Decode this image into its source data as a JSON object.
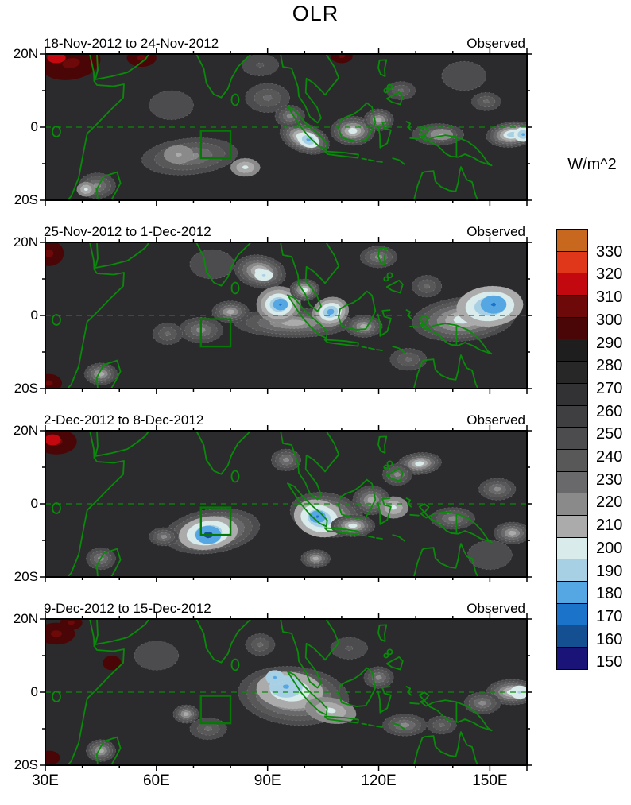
{
  "chart_data": {
    "type": "heatmap",
    "title": "OLR",
    "panels": [
      {
        "title": "18-Nov-2012 to 24-Nov-2012",
        "annotation": "Observed",
        "warm": [
          [
            37,
            17.5,
            8,
            4.5,
            300,
            -10
          ],
          [
            33,
            19,
            2.5,
            1.5,
            310,
            0,
            310
          ],
          [
            56,
            19,
            4,
            2.5,
            300,
            0
          ],
          [
            110,
            19.5,
            3,
            2,
            300,
            0
          ]
        ],
        "cool": [
          [
            69,
            -8,
            13,
            5,
            210,
            -5
          ],
          [
            66,
            -7.5,
            4,
            2.5,
            200,
            0,
            210
          ],
          [
            84,
            -11,
            4,
            2.5,
            190,
            0,
            210
          ],
          [
            90,
            8,
            6,
            4,
            220,
            0
          ],
          [
            100,
            -3,
            7,
            4,
            180,
            20
          ],
          [
            101,
            -3.5,
            3,
            2,
            170,
            20,
            190
          ],
          [
            96,
            3,
            4,
            3,
            210,
            0
          ],
          [
            113,
            -1,
            6,
            4,
            190,
            0
          ],
          [
            120,
            2,
            4,
            3,
            200,
            0
          ],
          [
            126,
            10,
            4,
            2.5,
            220,
            0
          ],
          [
            136,
            -2,
            7,
            3,
            210,
            0
          ],
          [
            137,
            -2,
            3,
            1.5,
            200,
            0,
            210
          ],
          [
            156,
            -2,
            7,
            3.5,
            180,
            -5
          ],
          [
            159,
            -2,
            2.5,
            2,
            170,
            0,
            190
          ],
          [
            149,
            7,
            4,
            2.5,
            220,
            0
          ],
          [
            44,
            -16,
            5,
            3.5,
            210,
            0
          ],
          [
            41,
            -17,
            2.5,
            2,
            190,
            0,
            210
          ],
          [
            88,
            17,
            5,
            3,
            230,
            0
          ],
          [
            64,
            6,
            6,
            4,
            240,
            0
          ],
          [
            143,
            14,
            6,
            4,
            240,
            0
          ]
        ]
      },
      {
        "title": "25-Nov-2012 to 1-Dec-2012",
        "annotation": "Observed",
        "warm": [
          [
            31,
            17,
            4,
            3.5,
            300,
            0
          ],
          [
            31,
            -18.5,
            3.5,
            2.5,
            300,
            0
          ]
        ],
        "cool": [
          [
            88,
            12,
            7,
            4.5,
            190,
            10
          ],
          [
            89,
            11,
            2.5,
            1.5,
            180,
            0,
            190
          ],
          [
            97,
            -2,
            16,
            4,
            200,
            0
          ],
          [
            93,
            3,
            6,
            5,
            170,
            0,
            210
          ],
          [
            93.5,
            3,
            2,
            1.6,
            160,
            0,
            170
          ],
          [
            100,
            7,
            4,
            3,
            190,
            0
          ],
          [
            107,
            1,
            5,
            4,
            170,
            -15,
            210
          ],
          [
            80,
            1,
            5,
            3,
            200,
            0
          ],
          [
            72,
            -4,
            6,
            3.5,
            210,
            0
          ],
          [
            63,
            -5,
            4,
            3,
            220,
            0
          ],
          [
            143,
            -1,
            14,
            6,
            190,
            -5
          ],
          [
            150,
            2.5,
            9,
            5.5,
            170,
            -5,
            200
          ],
          [
            151,
            3,
            3.5,
            2.5,
            160,
            0,
            170
          ],
          [
            120,
            16,
            5,
            3,
            210,
            0
          ],
          [
            133,
            8,
            4,
            3,
            220,
            0
          ],
          [
            45,
            -16,
            4.5,
            3,
            200,
            0
          ],
          [
            116,
            -3,
            5,
            3,
            200,
            0
          ],
          [
            128,
            -12,
            5,
            3,
            220,
            0
          ],
          [
            75,
            14,
            6,
            4,
            240,
            0
          ]
        ]
      },
      {
        "title": "2-Dec-2012 to 8-Dec-2012",
        "annotation": "Observed",
        "warm": [
          [
            33,
            17,
            5.5,
            3.5,
            300,
            0
          ],
          [
            32,
            17.5,
            2.2,
            1.5,
            310,
            0,
            310
          ]
        ],
        "cool": [
          [
            75,
            -7.5,
            13,
            6,
            190,
            -8
          ],
          [
            74,
            -8,
            8,
            4.5,
            170,
            -8,
            200
          ],
          [
            74,
            -8.5,
            3.5,
            2.5,
            160,
            0,
            170
          ],
          [
            74,
            -8.5,
            1.2,
            0.9,
            150,
            0,
            150
          ],
          [
            62,
            -9,
            4,
            2.5,
            210,
            0
          ],
          [
            106,
            -3,
            10,
            6,
            190,
            10
          ],
          [
            104,
            -4,
            7,
            5,
            170,
            15,
            200
          ],
          [
            103.5,
            -3.5,
            2.2,
            1.7,
            160,
            0,
            170
          ],
          [
            113,
            -6,
            6,
            3,
            190,
            0
          ],
          [
            118,
            1,
            5,
            4,
            200,
            0
          ],
          [
            124,
            -1,
            4,
            3,
            190,
            0,
            210
          ],
          [
            131,
            11,
            6,
            3,
            190,
            -5
          ],
          [
            125,
            8,
            4,
            3,
            210,
            0
          ],
          [
            152,
            4,
            5,
            3,
            210,
            0
          ],
          [
            156,
            -8,
            5,
            3,
            200,
            0
          ],
          [
            103,
            -15,
            4,
            2.5,
            200,
            0
          ],
          [
            45,
            -15,
            4,
            3,
            210,
            0
          ],
          [
            95,
            12,
            4,
            3,
            210,
            0
          ],
          [
            140,
            -4,
            6,
            3,
            210,
            0
          ],
          [
            150,
            -14,
            6,
            4,
            240,
            0
          ]
        ]
      },
      {
        "title": "9-Dec-2012 to 15-Dec-2012",
        "annotation": "Observed",
        "warm": [
          [
            33,
            16,
            5,
            3,
            300,
            0
          ],
          [
            37,
            19,
            3,
            2,
            300,
            0
          ],
          [
            31,
            -18,
            3,
            2,
            290,
            0
          ],
          [
            48,
            8,
            2.5,
            2,
            290,
            0
          ]
        ],
        "cool": [
          [
            97,
            -1,
            15,
            8,
            190,
            5
          ],
          [
            96,
            0.5,
            9,
            5,
            180,
            5,
            200
          ],
          [
            95,
            1.5,
            4.5,
            3,
            170,
            0,
            180
          ],
          [
            92,
            4,
            2.5,
            2,
            170,
            0,
            180
          ],
          [
            107,
            -5,
            7,
            3.5,
            190,
            10,
            210
          ],
          [
            68,
            -6,
            3.5,
            2.5,
            200,
            0
          ],
          [
            74,
            -10,
            5,
            3,
            220,
            0
          ],
          [
            156,
            0,
            7,
            3.5,
            190,
            0
          ],
          [
            158,
            0,
            2.5,
            1.8,
            180,
            0,
            190
          ],
          [
            148,
            -3,
            5,
            3,
            210,
            0
          ],
          [
            127,
            -9,
            6,
            3,
            210,
            0
          ],
          [
            137,
            -9,
            4,
            2.5,
            220,
            0
          ],
          [
            120,
            4,
            4,
            3,
            210,
            0
          ],
          [
            45,
            -16,
            4,
            3,
            200,
            0
          ],
          [
            88,
            13,
            4,
            3,
            220,
            0
          ],
          [
            112,
            12,
            5,
            3,
            230,
            0
          ],
          [
            60,
            10,
            6,
            4,
            240,
            0
          ]
        ]
      }
    ],
    "feature_format": "lon, lat, rx_deg, ry_deg, extreme_band_value, rotation_deg, optional_start_band",
    "x_axis": {
      "ticks": [
        {
          "label": "30E",
          "lon": 30
        },
        {
          "label": "60E",
          "lon": 60
        },
        {
          "label": "90E",
          "lon": 90
        },
        {
          "label": "120E",
          "lon": 120
        },
        {
          "label": "150E",
          "lon": 150
        }
      ],
      "lon_min": 30,
      "lon_max": 160,
      "minor_step_deg": 10
    },
    "y_axis": {
      "ticks": [
        {
          "label": "20N",
          "lat": 20
        },
        {
          "label": "0",
          "lat": 0
        },
        {
          "label": "20S",
          "lat": -20
        }
      ],
      "lat_min": -20,
      "lat_max": 20,
      "minor_step_deg": 10
    },
    "colorbar": {
      "title": "W/m^2",
      "tick_labels": [
        "330",
        "320",
        "310",
        "300",
        "290",
        "280",
        "270",
        "260",
        "250",
        "240",
        "230",
        "220",
        "210",
        "200",
        "190",
        "180",
        "170",
        "160",
        "150"
      ],
      "cell_colors_top_to_bottom": [
        "#C8681E",
        "#E0361A",
        "#C40810",
        "#6E0909",
        "#4A0606",
        "#1E1E1F",
        "#272728",
        "#323234",
        "#3F3F42",
        "#4C4C4F",
        "#585859",
        "#69696B",
        "#8A8A8A",
        "#ABABAB",
        "#D9ECEB",
        "#A8D0E4",
        "#55A7E4",
        "#1C73CA",
        "#144F92",
        "#1B1478"
      ],
      "band_values_top_to_bottom": [
        ">330",
        "320-330",
        "310-320",
        "300-310",
        "290-300",
        "280-290",
        "270-280",
        "260-270",
        "250-260",
        "240-250",
        "230-240",
        "220-230",
        "210-220",
        "200-210",
        "190-200",
        "180-190",
        "170-180",
        "160-170",
        "150-160",
        "<150"
      ]
    },
    "band_colors": {
      "330": "#C8681E",
      "320": "#E0361A",
      "310": "#C40810",
      "300": "#6E0909",
      "290": "#4A0606",
      "280": "#1E1E1F",
      "270": "#272728",
      "260": "#323234",
      "250": "#3F3F42",
      "240": "#4C4C4F",
      "230": "#585859",
      "220": "#69696B",
      "210": "#8A8A8A",
      "200": "#ABABAB",
      "190": "#D9ECEB",
      "180": "#A8D0E4",
      "170": "#55A7E4",
      "160": "#1C73CA",
      "150": "#144F92",
      "140": "#1B1478"
    },
    "map": {
      "base_color": "#2B2B2D",
      "coast_color": "#0A8A0A",
      "equator_color": "#0A8A0A",
      "box": {
        "lon_min": 72,
        "lon_max": 80,
        "lat_min": -8.5,
        "lat_max": -1,
        "color": "#067806"
      }
    }
  }
}
